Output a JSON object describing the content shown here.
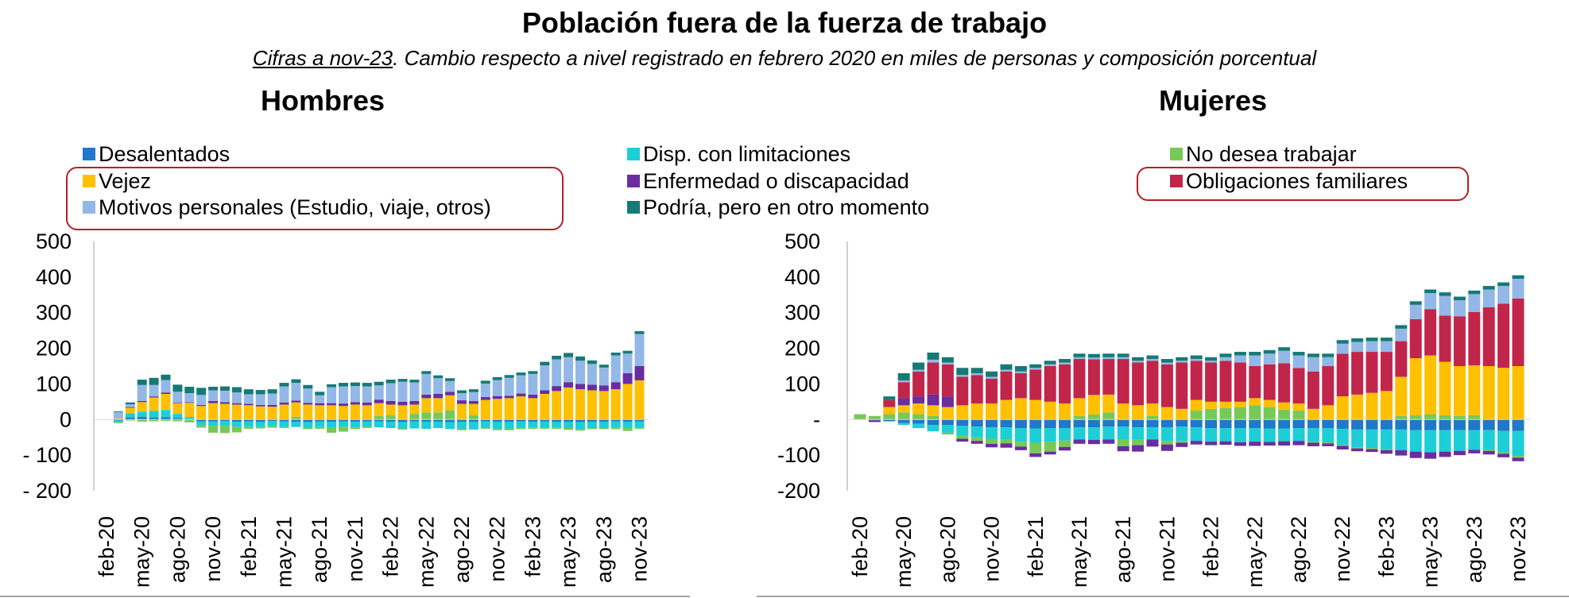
{
  "title": "Población fuera de la fuerza de trabajo",
  "subtitle": {
    "underlined": "Cifras a nov-23",
    "rest": ". Cambio respecto a nivel registrado en febrero 2020 en miles de personas y composición porcentual"
  },
  "legend": [
    {
      "label": "Desalentados",
      "color": "#1f78c8"
    },
    {
      "label": "Disp. con limitaciones",
      "color": "#1ccfd6"
    },
    {
      "label": "No desea trabajar",
      "color": "#76c956"
    },
    {
      "label": "Vejez",
      "color": "#ffc000"
    },
    {
      "label": "Enfermedad o discapacidad",
      "color": "#6a2d9f"
    },
    {
      "label": "Obligaciones familiares",
      "color": "#c1264a"
    },
    {
      "label": "Motivos personales (Estudio, viaje, otros)",
      "color": "#93b8e8"
    },
    {
      "label": "Podría, pero en otro momento",
      "color": "#157a74"
    }
  ],
  "chart_data": [
    {
      "type": "bar",
      "stacked": true,
      "title": "Hombres",
      "ylim": [
        -200,
        500
      ],
      "yticks": [
        500,
        400,
        300,
        200,
        100,
        0,
        -100,
        -200
      ],
      "ytick_labels": [
        "500",
        "400",
        "300",
        "200",
        "100",
        "0",
        "- 100",
        "- 200"
      ],
      "xtick_labels": [
        "feb-20",
        "may-20",
        "ago-20",
        "nov-20",
        "feb-21",
        "may-21",
        "ago-21",
        "nov-21",
        "feb-22",
        "may-22",
        "ago-22",
        "nov-22",
        "feb-23",
        "may-23",
        "ago-23",
        "nov-23"
      ],
      "categories": [
        "feb-20",
        "mar-20",
        "abr-20",
        "may-20",
        "jun-20",
        "jul-20",
        "ago-20",
        "sep-20",
        "oct-20",
        "nov-20",
        "dic-20",
        "ene-21",
        "feb-21",
        "mar-21",
        "abr-21",
        "may-21",
        "jun-21",
        "jul-21",
        "ago-21",
        "sep-21",
        "oct-21",
        "nov-21",
        "dic-21",
        "ene-22",
        "feb-22",
        "mar-22",
        "abr-22",
        "may-22",
        "jun-22",
        "jul-22",
        "ago-22",
        "sep-22",
        "oct-22",
        "nov-22",
        "dic-22",
        "ene-23",
        "feb-23",
        "mar-23",
        "abr-23",
        "may-23",
        "jun-23",
        "jul-23",
        "ago-23",
        "sep-23",
        "oct-23",
        "nov-23"
      ],
      "series": [
        {
          "name": "Desalentados",
          "values": [
            0,
            -3,
            6,
            8,
            6,
            7,
            4,
            1,
            -5,
            -5,
            -4,
            -6,
            -5,
            -6,
            -4,
            -5,
            -6,
            -7,
            -5,
            -6,
            -5,
            -6,
            -5,
            -5,
            -6,
            -7,
            -5,
            -6,
            -6,
            -7,
            -6,
            -6,
            -5,
            -6,
            -6,
            -5,
            -6,
            -5,
            -6,
            -6,
            -7,
            -6,
            -6,
            -5,
            -6,
            -5
          ]
        },
        {
          "name": "Disp. con limitaciones",
          "values": [
            0,
            -5,
            12,
            14,
            18,
            20,
            12,
            6,
            -10,
            -12,
            -14,
            -15,
            -16,
            -15,
            -14,
            -16,
            -15,
            -17,
            -16,
            -17,
            -15,
            -16,
            -15,
            -17,
            -18,
            -18,
            -20,
            -20,
            -18,
            -20,
            -20,
            -22,
            -18,
            -20,
            -19,
            -18,
            -17,
            -18,
            -16,
            -18,
            -20,
            -18,
            -18,
            -17,
            -18,
            -18
          ]
        },
        {
          "name": "No desea trabajar",
          "values": [
            0,
            -2,
            -3,
            -6,
            -5,
            -4,
            -5,
            -8,
            -8,
            -20,
            -20,
            -15,
            -5,
            -4,
            -5,
            -3,
            8,
            -3,
            -5,
            -14,
            -14,
            -5,
            -4,
            10,
            12,
            -3,
            16,
            20,
            20,
            26,
            -4,
            12,
            -3,
            -4,
            -5,
            -4,
            -3,
            -3,
            -4,
            -5,
            -4,
            -3,
            -3,
            -5,
            -8,
            -3
          ]
        },
        {
          "name": "Vejez",
          "values": [
            0,
            3,
            15,
            27,
            38,
            45,
            30,
            40,
            38,
            46,
            44,
            42,
            40,
            37,
            36,
            42,
            40,
            42,
            40,
            40,
            38,
            42,
            40,
            36,
            30,
            40,
            26,
            40,
            40,
            42,
            44,
            32,
            55,
            58,
            60,
            65,
            60,
            72,
            80,
            90,
            85,
            82,
            80,
            85,
            100,
            110
          ]
        },
        {
          "name": "Enfermedad o discapacidad",
          "values": [
            0,
            0,
            2,
            3,
            3,
            4,
            2,
            2,
            3,
            6,
            5,
            4,
            4,
            4,
            5,
            6,
            5,
            5,
            6,
            6,
            7,
            7,
            8,
            10,
            10,
            10,
            10,
            10,
            12,
            10,
            10,
            8,
            8,
            8,
            7,
            8,
            10,
            10,
            14,
            15,
            15,
            16,
            16,
            20,
            30,
            40
          ]
        },
        {
          "name": "Motivos personales (Estudio, viaje, otros)",
          "values": [
            0,
            18,
            8,
            45,
            32,
            35,
            30,
            25,
            28,
            30,
            32,
            30,
            27,
            30,
            32,
            45,
            50,
            40,
            22,
            45,
            48,
            45,
            45,
            40,
            50,
            56,
            52,
            58,
            44,
            30,
            20,
            25,
            38,
            45,
            50,
            51,
            58,
            70,
            75,
            70,
            65,
            58,
            50,
            75,
            55,
            90
          ]
        },
        {
          "name": "Podría, pero en otro momento",
          "values": [
            0,
            2,
            5,
            15,
            20,
            15,
            20,
            18,
            20,
            10,
            12,
            15,
            14,
            12,
            12,
            10,
            10,
            10,
            10,
            8,
            10,
            10,
            10,
            10,
            10,
            8,
            8,
            8,
            8,
            8,
            8,
            8,
            8,
            8,
            8,
            8,
            8,
            10,
            10,
            12,
            12,
            10,
            8,
            8,
            8,
            8
          ]
        },
        {
          "name": "Obligaciones familiares",
          "values": [
            0,
            0,
            0,
            0,
            0,
            0,
            0,
            0,
            0,
            0,
            0,
            0,
            0,
            0,
            0,
            0,
            0,
            0,
            0,
            0,
            0,
            0,
            0,
            0,
            0,
            0,
            0,
            0,
            0,
            0,
            0,
            0,
            0,
            0,
            0,
            0,
            0,
            0,
            0,
            0,
            0,
            0,
            0,
            0,
            0,
            0
          ]
        }
      ]
    },
    {
      "type": "bar",
      "stacked": true,
      "title": "Mujeres",
      "ylim": [
        -200,
        500
      ],
      "yticks": [
        500,
        400,
        300,
        200,
        100,
        0,
        -100,
        -200
      ],
      "ytick_labels": [
        "500",
        "400",
        "300",
        "200",
        "100",
        "-",
        "-100",
        "-200"
      ],
      "xtick_labels": [
        "feb-20",
        "may-20",
        "ago-20",
        "nov-20",
        "feb-21",
        "may-21",
        "ago-21",
        "nov-21",
        "feb-22",
        "may-22",
        "ago-22",
        "nov-22",
        "feb-23",
        "may-23",
        "ago-23",
        "nov-23"
      ],
      "categories": [
        "feb-20",
        "mar-20",
        "abr-20",
        "may-20",
        "jun-20",
        "jul-20",
        "ago-20",
        "sep-20",
        "oct-20",
        "nov-20",
        "dic-20",
        "ene-21",
        "feb-21",
        "mar-21",
        "abr-21",
        "may-21",
        "jun-21",
        "jul-21",
        "ago-21",
        "sep-21",
        "oct-21",
        "nov-21",
        "dic-21",
        "ene-22",
        "feb-22",
        "mar-22",
        "abr-22",
        "may-22",
        "jun-22",
        "jul-22",
        "ago-22",
        "sep-22",
        "oct-22",
        "nov-22",
        "dic-22",
        "ene-23",
        "feb-23",
        "mar-23",
        "abr-23",
        "may-23",
        "jun-23",
        "jul-23",
        "ago-23",
        "sep-23",
        "oct-23",
        "nov-23"
      ],
      "series": [
        {
          "name": "Desalentados",
          "values": [
            0,
            -2,
            -5,
            -10,
            -12,
            -15,
            -15,
            -18,
            -20,
            -22,
            -22,
            -24,
            -25,
            -24,
            -24,
            -22,
            -22,
            -20,
            -20,
            -22,
            -22,
            -22,
            -20,
            -22,
            -24,
            -24,
            -24,
            -24,
            -25,
            -25,
            -24,
            -24,
            -24,
            -26,
            -28,
            -28,
            -28,
            -28,
            -30,
            -30,
            -30,
            -30,
            -30,
            -30,
            -32,
            -32
          ]
        },
        {
          "name": "Disp. con limitaciones",
          "values": [
            0,
            0,
            0,
            -5,
            -12,
            -18,
            -22,
            -28,
            -30,
            -32,
            -35,
            -38,
            -40,
            -38,
            -35,
            -34,
            -35,
            -36,
            -35,
            -35,
            -34,
            -38,
            -40,
            -38,
            -38,
            -37,
            -40,
            -38,
            -38,
            -36,
            -36,
            -38,
            -40,
            -45,
            -50,
            -52,
            -55,
            -58,
            -60,
            -62,
            -60,
            -58,
            -55,
            -55,
            -60,
            -70
          ]
        },
        {
          "name": "No desea trabajar",
          "values": [
            15,
            10,
            15,
            20,
            15,
            10,
            -5,
            -8,
            -10,
            -14,
            -10,
            -14,
            -30,
            -28,
            -18,
            10,
            14,
            20,
            -20,
            -15,
            10,
            -10,
            -5,
            25,
            30,
            32,
            35,
            40,
            35,
            28,
            25,
            -3,
            -3,
            -3,
            -3,
            -3,
            -3,
            10,
            12,
            15,
            12,
            10,
            12,
            -3,
            -4,
            -5
          ]
        },
        {
          "name": "Vejez",
          "values": [
            0,
            0,
            20,
            20,
            30,
            30,
            35,
            40,
            45,
            45,
            55,
            60,
            55,
            50,
            45,
            50,
            55,
            50,
            45,
            40,
            35,
            35,
            30,
            30,
            20,
            18,
            15,
            20,
            20,
            20,
            20,
            30,
            40,
            65,
            70,
            75,
            80,
            110,
            160,
            165,
            150,
            140,
            140,
            150,
            145,
            150
          ]
        },
        {
          "name": "Enfermedad o discapacidad",
          "values": [
            0,
            -5,
            0,
            20,
            20,
            30,
            30,
            -8,
            -8,
            -10,
            -12,
            -10,
            -10,
            -8,
            -10,
            -12,
            -12,
            -12,
            -14,
            -18,
            -20,
            -18,
            -12,
            -10,
            -10,
            -10,
            -10,
            -12,
            -10,
            -12,
            -12,
            -10,
            -8,
            -10,
            -8,
            -8,
            -10,
            -15,
            -18,
            -18,
            -15,
            -12,
            -10,
            -10,
            -10,
            -10
          ]
        },
        {
          "name": "Obligaciones familiares",
          "values": [
            0,
            0,
            20,
            45,
            70,
            90,
            90,
            80,
            80,
            70,
            80,
            70,
            85,
            100,
            110,
            110,
            100,
            100,
            125,
            120,
            120,
            120,
            130,
            110,
            110,
            115,
            110,
            90,
            100,
            110,
            100,
            105,
            110,
            120,
            120,
            115,
            110,
            100,
            110,
            130,
            130,
            140,
            150,
            165,
            180,
            190
          ]
        },
        {
          "name": "Motivos personales (Estudio, viaje, otros)",
          "values": [
            0,
            0,
            0,
            5,
            5,
            8,
            5,
            5,
            5,
            5,
            5,
            5,
            5,
            5,
            5,
            5,
            5,
            5,
            5,
            5,
            5,
            5,
            5,
            5,
            5,
            10,
            20,
            30,
            30,
            35,
            35,
            40,
            25,
            28,
            28,
            30,
            30,
            35,
            40,
            45,
            55,
            45,
            50,
            50,
            50,
            55
          ]
        },
        {
          "name": "Podría, pero en otro momento",
          "values": [
            0,
            0,
            10,
            20,
            20,
            20,
            15,
            20,
            15,
            15,
            15,
            15,
            10,
            10,
            10,
            10,
            10,
            10,
            10,
            10,
            10,
            10,
            10,
            10,
            10,
            10,
            10,
            10,
            10,
            10,
            10,
            10,
            10,
            10,
            10,
            10,
            10,
            10,
            10,
            10,
            10,
            10,
            10,
            10,
            10,
            10
          ]
        }
      ]
    }
  ]
}
